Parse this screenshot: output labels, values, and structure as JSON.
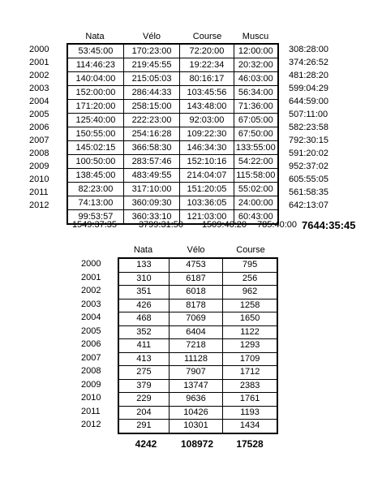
{
  "hours_table": {
    "columns": [
      "Nata",
      "Vélo",
      "Course",
      "Muscu"
    ],
    "years": [
      "2000",
      "2001",
      "2002",
      "2003",
      "2004",
      "2005",
      "2006",
      "2007",
      "2008",
      "2009",
      "2010",
      "2011",
      "2012"
    ],
    "rows": [
      [
        "53:45:00",
        "170:23:00",
        "72:20:00",
        "12:00:00"
      ],
      [
        "114:46:23",
        "219:45:55",
        "19:22:34",
        "20:32:00"
      ],
      [
        "140:04:00",
        "215:05:03",
        "80:16:17",
        "46:03:00"
      ],
      [
        "152:00:00",
        "286:44:33",
        "103:45:56",
        "56:34:00"
      ],
      [
        "171:20:00",
        "258:15:00",
        "143:48:00",
        "71:36:00"
      ],
      [
        "125:40:00",
        "222:23:00",
        "92:03:00",
        "67:05:00"
      ],
      [
        "150:55:00",
        "254:16:28",
        "109:22:30",
        "67:50:00"
      ],
      [
        "145:02:15",
        "366:58:30",
        "146:34:30",
        "133:55:00"
      ],
      [
        "100:50:00",
        "283:57:46",
        "152:10:16",
        "54:22:00"
      ],
      [
        "138:45:00",
        "483:49:55",
        "214:04:07",
        "115:58:00"
      ],
      [
        "82:23:00",
        "317:10:00",
        "151:20:05",
        "55:02:00"
      ],
      [
        "74:13:00",
        "360:09:30",
        "103:36:05",
        "24:00:00"
      ],
      [
        "99:53:57",
        "360:33:10",
        "121:03:00",
        "60:43:00"
      ]
    ],
    "row_totals": [
      "308:28:00",
      "374:26:52",
      "481:28:20",
      "599:04:29",
      "644:59:00",
      "507:11:00",
      "582:23:58",
      "792:30:15",
      "591:20:02",
      "952:37:02",
      "605:55:05",
      "561:58:35",
      "642:13:07"
    ],
    "column_totals": [
      "1549:37:35",
      "3799:31:50",
      "1509:46:20",
      "785:40:00"
    ],
    "grand_total": "7644:35:45"
  },
  "distance_table": {
    "columns": [
      "Nata",
      "Vélo",
      "Course"
    ],
    "years": [
      "2000",
      "2001",
      "2002",
      "2003",
      "2004",
      "2005",
      "2006",
      "2007",
      "2008",
      "2009",
      "2010",
      "2011",
      "2012"
    ],
    "rows": [
      [
        "133",
        "4753",
        "795"
      ],
      [
        "310",
        "6187",
        "256"
      ],
      [
        "351",
        "6018",
        "962"
      ],
      [
        "426",
        "8178",
        "1258"
      ],
      [
        "468",
        "7069",
        "1650"
      ],
      [
        "352",
        "6404",
        "1122"
      ],
      [
        "411",
        "7218",
        "1293"
      ],
      [
        "413",
        "11128",
        "1709"
      ],
      [
        "275",
        "7907",
        "1712"
      ],
      [
        "379",
        "13747",
        "2383"
      ],
      [
        "229",
        "9636",
        "1761"
      ],
      [
        "204",
        "10426",
        "1193"
      ],
      [
        "291",
        "10301",
        "1434"
      ]
    ],
    "column_totals": [
      "4242",
      "108972",
      "17528"
    ]
  }
}
